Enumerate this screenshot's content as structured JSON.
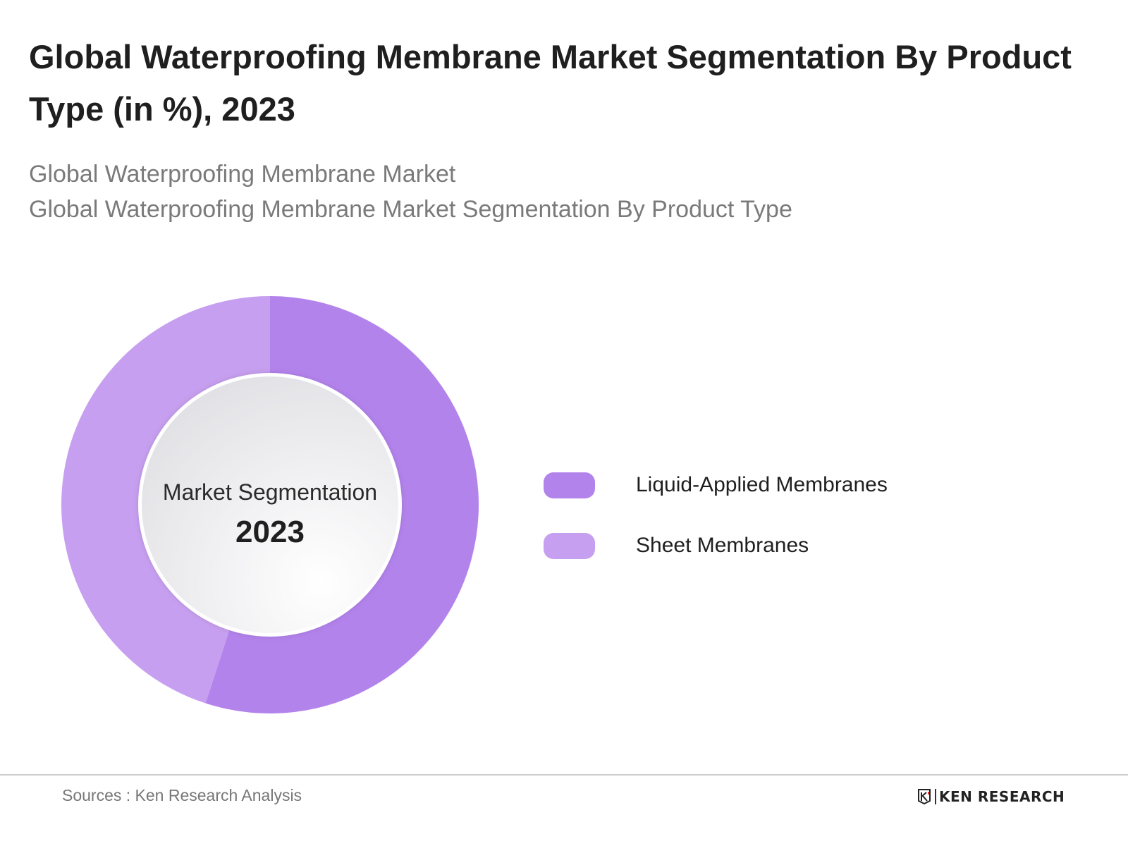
{
  "header": {
    "title": "Global Waterproofing Membrane Market Segmentation By Product Type (in %), 2023",
    "subtitle_1": "Global Waterproofing Membrane Market",
    "subtitle_2": "Global Waterproofing Membrane Market Segmentation By Product Type"
  },
  "chart_data": {
    "type": "pie",
    "variant": "donut",
    "title": "Global Waterproofing Membrane Market Segmentation By Product Type (in %), 2023",
    "center_label": {
      "line1": "Market Segmentation",
      "line2": "2023"
    },
    "categories": [
      "Liquid-Applied Membranes",
      "Sheet Membranes"
    ],
    "values": [
      55,
      45
    ],
    "unit": "%",
    "colors": [
      "#b383ec",
      "#c79ff0"
    ],
    "legend_position": "right",
    "data_labels_shown": false
  },
  "footer": {
    "source": "Sources : Ken Research Analysis",
    "brand": "KEN RESEARCH"
  },
  "colors": {
    "title": "#1f1f1f",
    "subtitle": "#7a7a7a",
    "inner_circle": "#efeff2"
  }
}
